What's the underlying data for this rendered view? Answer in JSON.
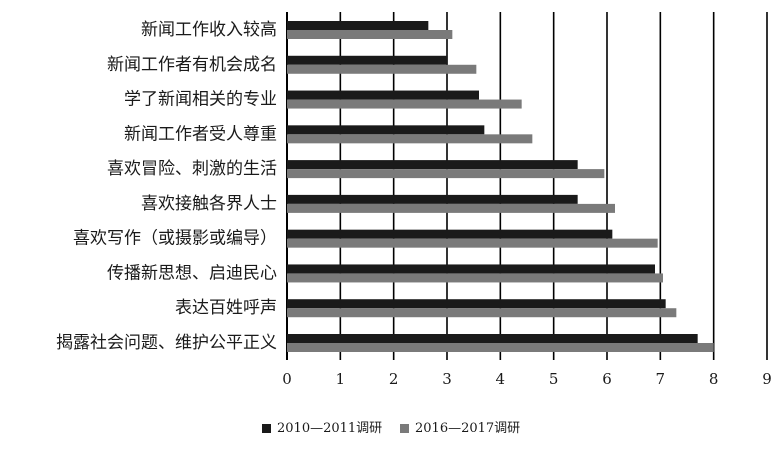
{
  "chart_data": {
    "type": "bar",
    "orientation": "horizontal",
    "categories": [
      "新闻工作收入较高",
      "新闻工作者有机会成名",
      "学了新闻相关的专业",
      "新闻工作者受人尊重",
      "喜欢冒险、刺激的生活",
      "喜欢接触各界人士",
      "喜欢写作（或摄影或编导）",
      "传播新思想、启迪民心",
      "表达百姓呼声",
      "揭露社会问题、维护公平正义"
    ],
    "series": [
      {
        "name": "2010—2011调研",
        "color": "#1a1a1a",
        "values": [
          2.65,
          3.0,
          3.6,
          3.7,
          5.45,
          5.45,
          6.1,
          6.9,
          7.1,
          7.7
        ]
      },
      {
        "name": "2016—2017调研",
        "color": "#7a7a7a",
        "values": [
          3.1,
          3.55,
          4.4,
          4.6,
          5.95,
          6.15,
          6.95,
          7.05,
          7.3,
          8.0
        ]
      }
    ],
    "xlim": [
      0,
      9
    ],
    "x_ticks": [
      "0",
      "1",
      "2",
      "3",
      "4",
      "5",
      "6",
      "7",
      "8",
      "9"
    ],
    "grid": "vertical",
    "legend_position": "bottom"
  }
}
